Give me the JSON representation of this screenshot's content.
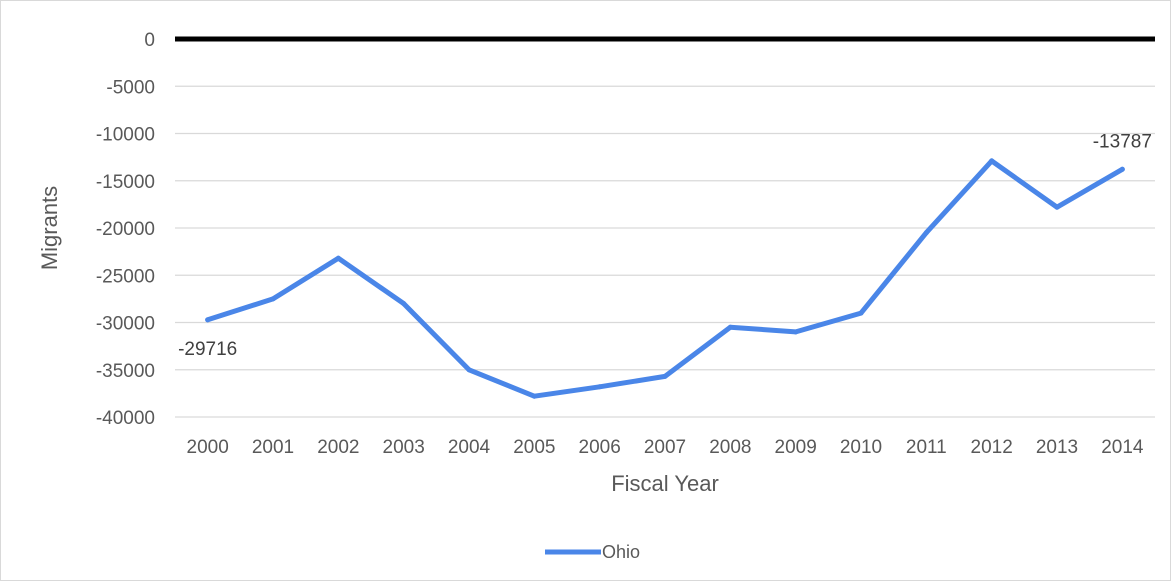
{
  "chart_data": {
    "type": "line",
    "xlabel": "Fiscal Year",
    "ylabel": "Migrants",
    "ylim": [
      -40000,
      0
    ],
    "yticks": [
      0,
      -5000,
      -10000,
      -15000,
      -20000,
      -25000,
      -30000,
      -35000,
      -40000
    ],
    "categories": [
      "2000",
      "2001",
      "2002",
      "2003",
      "2004",
      "2005",
      "2006",
      "2007",
      "2008",
      "2009",
      "2010",
      "2011",
      "2012",
      "2013",
      "2014"
    ],
    "series": [
      {
        "name": "Ohio",
        "color": "#4a86e8",
        "values": [
          -29716,
          -27500,
          -23200,
          -28000,
          -35000,
          -37800,
          -36800,
          -35700,
          -30500,
          -31000,
          -29000,
          -20500,
          -12900,
          -17800,
          -13787
        ]
      }
    ],
    "data_labels": [
      {
        "index": 0,
        "text": "-29716",
        "placement": "below"
      },
      {
        "index": 14,
        "text": "-13787",
        "placement": "above"
      }
    ],
    "zero_line_color": "#000000",
    "gridlines": true,
    "legend_position": "bottom"
  }
}
